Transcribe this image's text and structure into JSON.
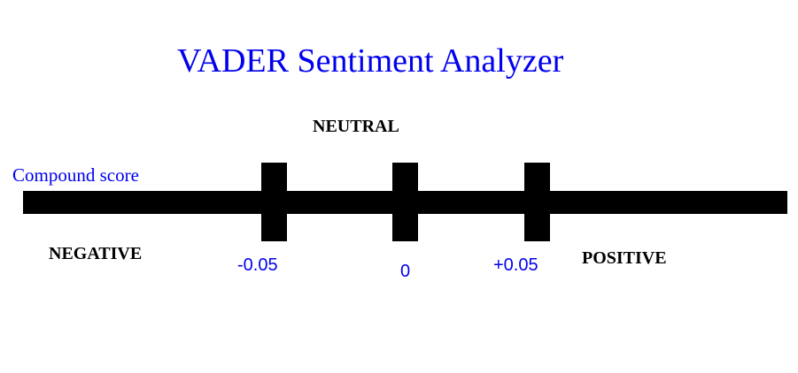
{
  "title": "VADER Sentiment Analyzer",
  "axis_label": "Compound score",
  "zones": {
    "negative": "NEGATIVE",
    "neutral": "NEUTRAL",
    "positive": "POSITIVE"
  },
  "thresholds": [
    "-0.05",
    "0",
    "+0.05"
  ],
  "colors": {
    "title": "#0000ee",
    "labels": "#000000",
    "axis": "#000000",
    "tick_values": "#0000ee"
  }
}
